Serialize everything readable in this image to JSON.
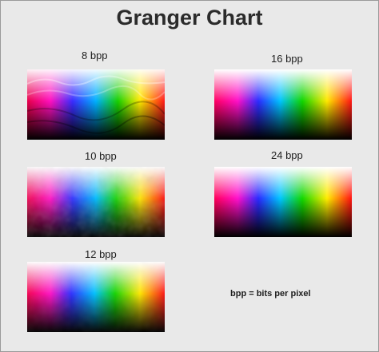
{
  "title": "Granger Chart",
  "panels": [
    {
      "label": "8 bpp"
    },
    {
      "label": "16 bpp"
    },
    {
      "label": "10 bpp"
    },
    {
      "label": "24 bpp"
    },
    {
      "label": "12 bpp"
    }
  ],
  "note": "bpp = bits per pixel",
  "colors": {
    "background": "#e9e9e9",
    "border": "#9a9a9a",
    "text": "#2b2b2b"
  }
}
